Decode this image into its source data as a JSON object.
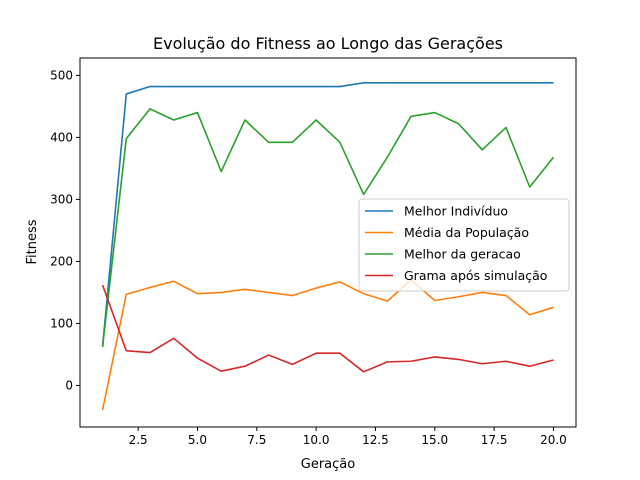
{
  "chart_data": {
    "type": "line",
    "title": "Evolução do Fitness ao Longo das Gerações",
    "xlabel": "Geração",
    "ylabel": "Fitness",
    "xlim": [
      0.05,
      20.95
    ],
    "ylim": [
      -67,
      528
    ],
    "grid": false,
    "legend_placement": "center-right",
    "xticks": [
      2.5,
      5.0,
      7.5,
      10.0,
      12.5,
      15.0,
      17.5,
      20.0
    ],
    "xtick_labels": [
      "2.5",
      "5.0",
      "7.5",
      "10.0",
      "12.5",
      "15.0",
      "17.5",
      "20.0"
    ],
    "yticks": [
      0,
      100,
      200,
      300,
      400,
      500
    ],
    "ytick_labels": [
      "0",
      "100",
      "200",
      "300",
      "400",
      "500"
    ],
    "x": [
      1,
      2,
      3,
      4,
      5,
      6,
      7,
      8,
      9,
      10,
      11,
      12,
      13,
      14,
      15,
      16,
      17,
      18,
      19,
      20
    ],
    "series": [
      {
        "name": "Melhor Indivíduo",
        "color": "#1f77b4",
        "values": [
          62,
          470,
          482,
          482,
          482,
          482,
          482,
          482,
          482,
          482,
          482,
          488,
          488,
          488,
          488,
          488,
          488,
          488,
          488,
          488
        ]
      },
      {
        "name": "Média da População",
        "color": "#ff7f0e",
        "values": [
          -40,
          147,
          158,
          168,
          148,
          150,
          155,
          150,
          145,
          157,
          167,
          148,
          136,
          170,
          137,
          143,
          150,
          145,
          114,
          126
        ]
      },
      {
        "name": "Melhor da geracao",
        "color": "#2ca02c",
        "values": [
          62,
          398,
          446,
          428,
          440,
          345,
          428,
          392,
          392,
          428,
          392,
          308,
          368,
          434,
          440,
          422,
          380,
          416,
          320,
          368
        ]
      },
      {
        "name": "Grama após simulação",
        "color": "#d62728",
        "values": [
          162,
          56,
          53,
          76,
          44,
          23,
          31,
          49,
          34,
          52,
          52,
          22,
          38,
          39,
          46,
          42,
          35,
          39,
          31,
          41
        ]
      }
    ]
  }
}
